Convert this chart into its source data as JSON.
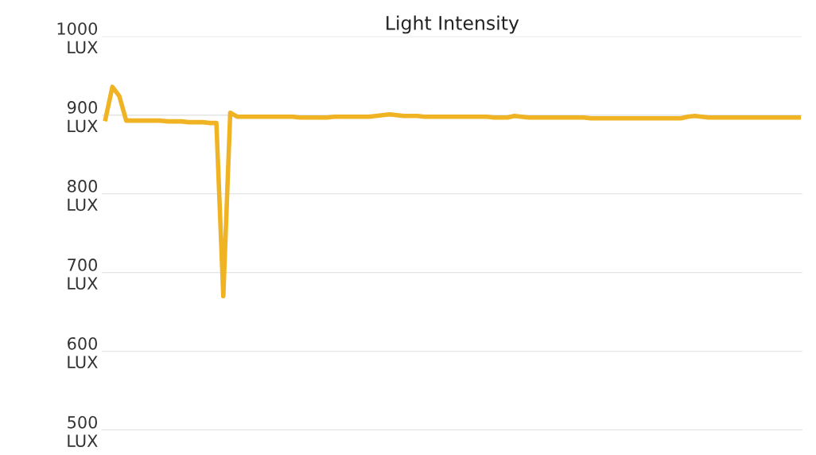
{
  "chart_data": {
    "type": "line",
    "title": "Light Intensity",
    "categories": [
      null,
      null,
      null,
      null,
      null,
      null,
      null,
      null,
      null,
      null,
      null,
      null,
      null,
      null,
      null,
      null,
      null,
      null,
      null,
      null,
      null,
      null,
      null,
      null,
      null,
      null,
      null,
      null,
      null,
      null,
      null,
      null,
      null,
      null,
      null,
      null,
      null,
      null,
      null,
      null,
      null,
      null,
      null,
      null,
      null,
      null,
      null,
      null,
      null,
      null,
      null,
      null,
      null,
      null,
      null,
      null,
      null,
      null,
      null,
      null,
      null,
      null,
      null,
      null,
      null,
      null,
      null,
      null,
      null,
      null,
      null,
      null,
      null,
      null,
      null,
      null,
      null,
      null,
      null,
      null,
      null,
      null,
      null,
      null,
      null,
      null,
      null,
      null,
      null,
      null,
      null,
      null,
      null,
      null,
      null,
      null,
      null,
      null,
      null,
      null,
      null
    ],
    "series": [
      {
        "color": "#f0b323",
        "values": [
          895,
          936,
          924,
          893,
          893,
          893,
          893,
          893,
          893,
          892,
          892,
          892,
          891,
          891,
          891,
          890,
          890,
          670,
          903,
          898,
          898,
          898,
          898,
          898,
          898,
          898,
          898,
          898,
          897,
          897,
          897,
          897,
          897,
          898,
          898,
          898,
          898,
          898,
          898,
          899,
          900,
          901,
          900,
          899,
          899,
          899,
          898,
          898,
          898,
          898,
          898,
          898,
          898,
          898,
          898,
          898,
          897,
          897,
          897,
          899,
          898,
          897,
          897,
          897,
          897,
          897,
          897,
          897,
          897,
          897,
          896,
          896,
          896,
          896,
          896,
          896,
          896,
          896,
          896,
          896,
          896,
          896,
          896,
          896,
          898,
          899,
          898,
          897,
          897,
          897,
          897,
          897,
          897,
          897,
          897,
          897,
          897,
          897,
          897,
          897,
          897
        ]
      }
    ],
    "ylim": [
      500,
      1000
    ],
    "yticks": [
      {
        "value": 500,
        "label": "500\nLUX"
      },
      {
        "value": 600,
        "label": "600\nLUX"
      },
      {
        "value": 700,
        "label": "700\nLUX"
      },
      {
        "value": 800,
        "label": "800\nLUX"
      },
      {
        "value": 900,
        "label": "900\nLUX"
      },
      {
        "value": 1000,
        "label": "1000\nLUX"
      }
    ],
    "grid": "y",
    "marker": "none",
    "line_style": "solid"
  }
}
